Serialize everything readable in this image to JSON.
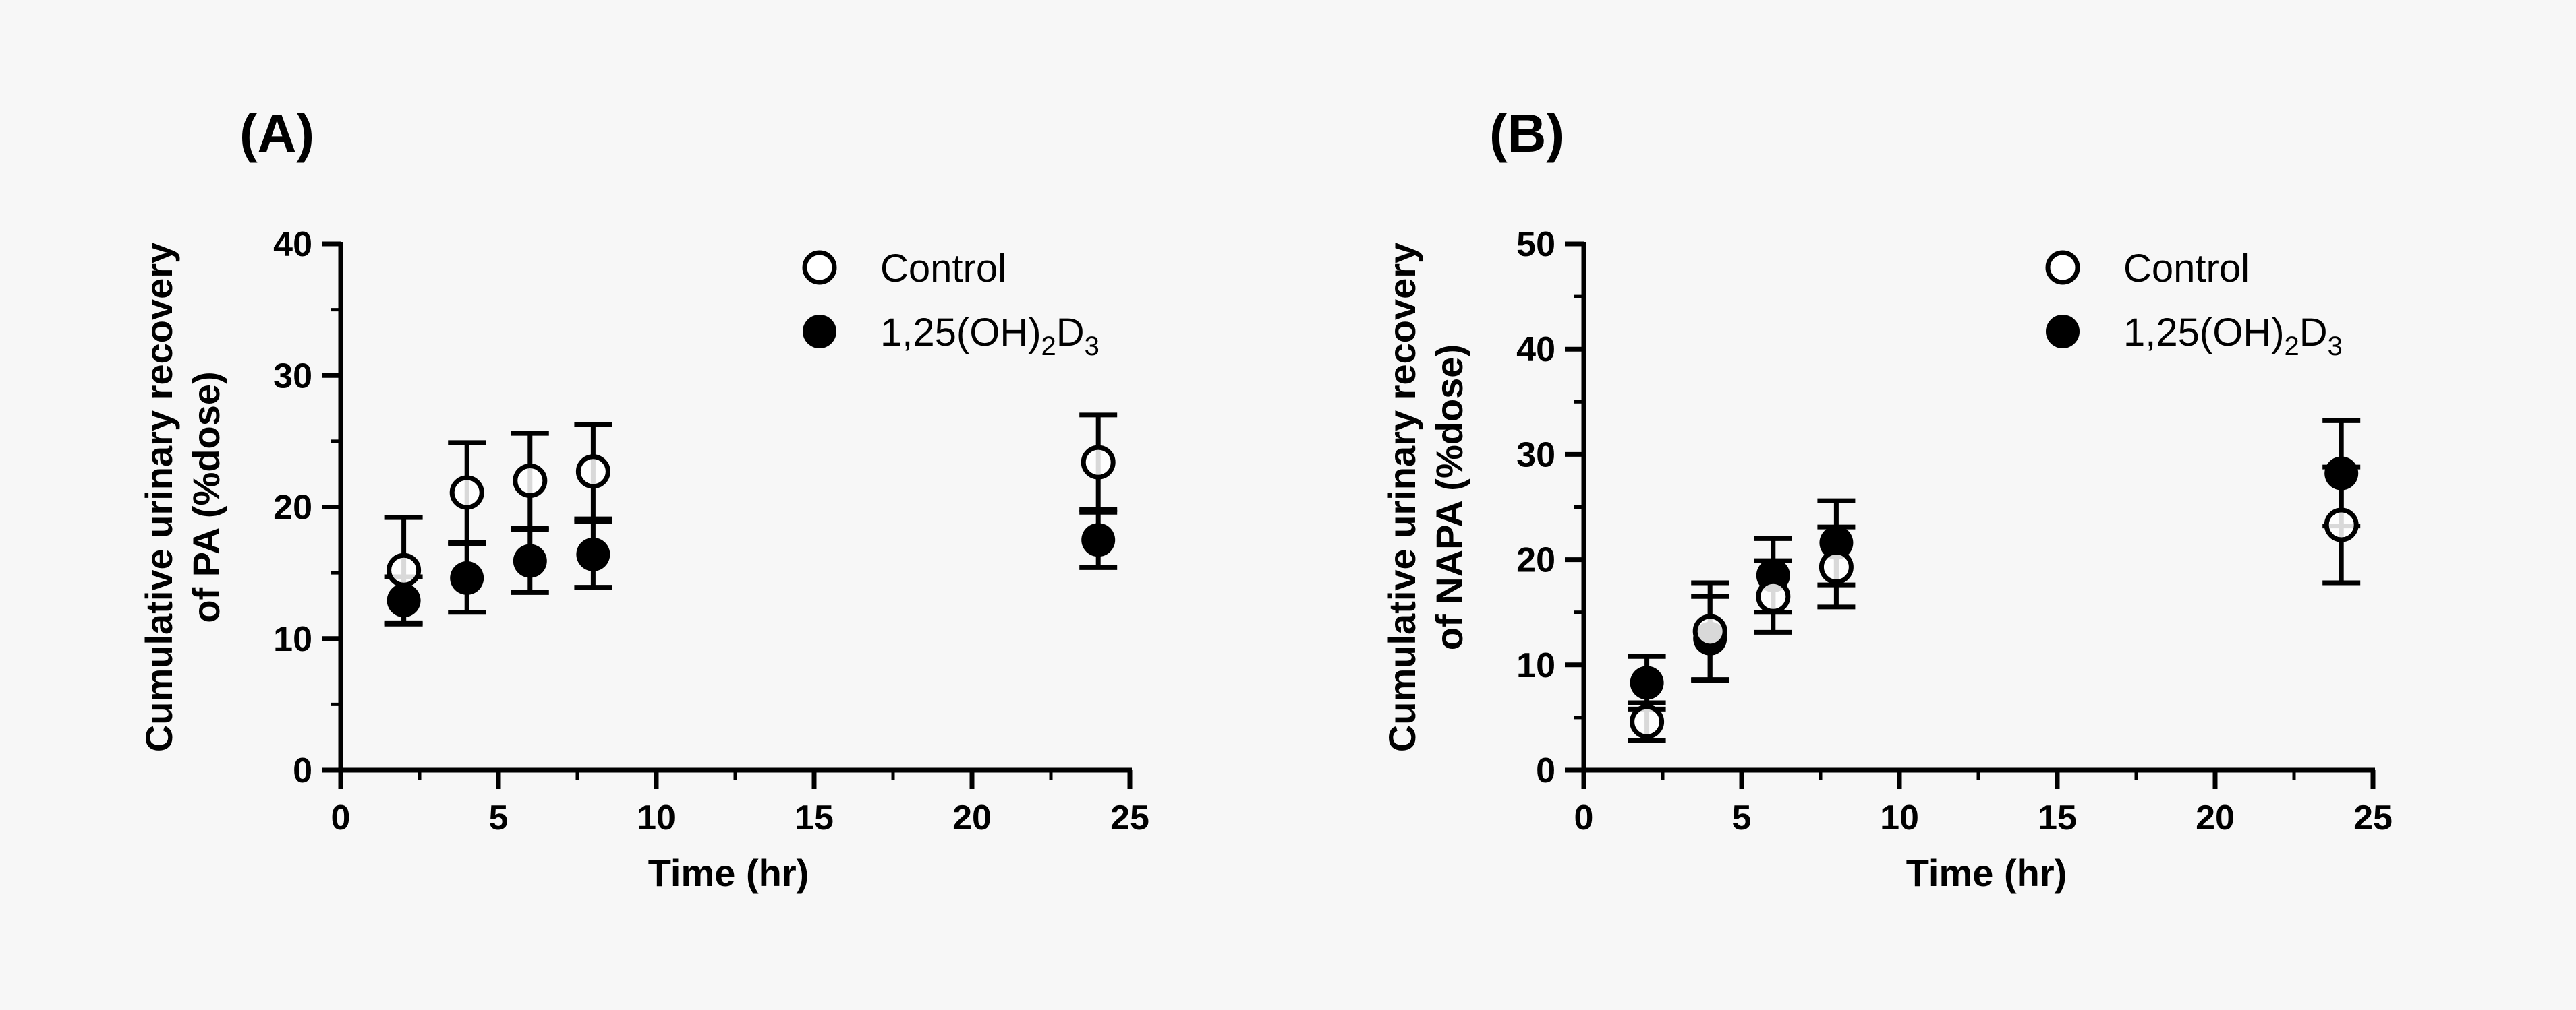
{
  "chart_data": [
    {
      "type": "scatter",
      "panel_label": "(A)",
      "title": "",
      "xlabel": "Time (hr)",
      "ylabel_line1": "Cumulative urinary recovery",
      "ylabel_line2": "of PA (%dose)",
      "xlim": [
        0,
        25
      ],
      "ylim": [
        0,
        40
      ],
      "xticks": [
        "0",
        "5",
        "10",
        "15",
        "20",
        "25"
      ],
      "yticks": [
        "0",
        "10",
        "20",
        "30",
        "40"
      ],
      "legend_position": "top-right",
      "legend": [
        {
          "marker": "open-circle",
          "label": "Control"
        },
        {
          "marker": "filled-circle",
          "label_main": "1,25(OH)",
          "label_sub1": "2",
          "label_mid": "D",
          "label_sub2": "3"
        }
      ],
      "series": [
        {
          "name": "Control",
          "marker": "open-circle",
          "x": [
            2,
            4,
            6,
            8,
            24
          ],
          "y": [
            15.2,
            21.1,
            22.0,
            22.7,
            23.4
          ],
          "err": [
            4.0,
            3.8,
            3.6,
            3.6,
            3.6
          ]
        },
        {
          "name": "1,25(OH)2D3",
          "marker": "filled-circle",
          "x": [
            2,
            4,
            6,
            8,
            24
          ],
          "y": [
            12.9,
            14.6,
            15.9,
            16.4,
            17.5
          ],
          "err": [
            1.8,
            2.6,
            2.4,
            2.5,
            2.1
          ]
        }
      ]
    },
    {
      "type": "scatter",
      "panel_label": "(B)",
      "title": "",
      "xlabel": "Time (hr)",
      "ylabel_line1": "Cumulative urinary recovery",
      "ylabel_line2": "of NAPA (%dose)",
      "xlim": [
        0,
        25
      ],
      "ylim": [
        0,
        50
      ],
      "xticks": [
        "0",
        "5",
        "10",
        "15",
        "20",
        "25"
      ],
      "yticks": [
        "0",
        "10",
        "20",
        "30",
        "40",
        "50"
      ],
      "legend_position": "top-right",
      "legend": [
        {
          "marker": "open-circle",
          "label": "Control"
        },
        {
          "marker": "filled-circle",
          "label_main": "1,25(OH)",
          "label_sub1": "2",
          "label_mid": "D",
          "label_sub2": "3"
        }
      ],
      "series": [
        {
          "name": "Control",
          "marker": "open-circle",
          "x": [
            2,
            4,
            6,
            8,
            24
          ],
          "y": [
            4.6,
            13.2,
            16.5,
            19.3,
            23.3
          ],
          "err": [
            1.8,
            4.6,
            3.4,
            3.8,
            5.5
          ]
        },
        {
          "name": "1,25(OH)2D3",
          "marker": "filled-circle",
          "x": [
            2,
            4,
            6,
            8,
            24
          ],
          "y": [
            8.3,
            12.5,
            18.5,
            21.6,
            28.2
          ],
          "err": [
            2.5,
            4.0,
            3.5,
            4.0,
            5.0
          ]
        }
      ]
    }
  ]
}
